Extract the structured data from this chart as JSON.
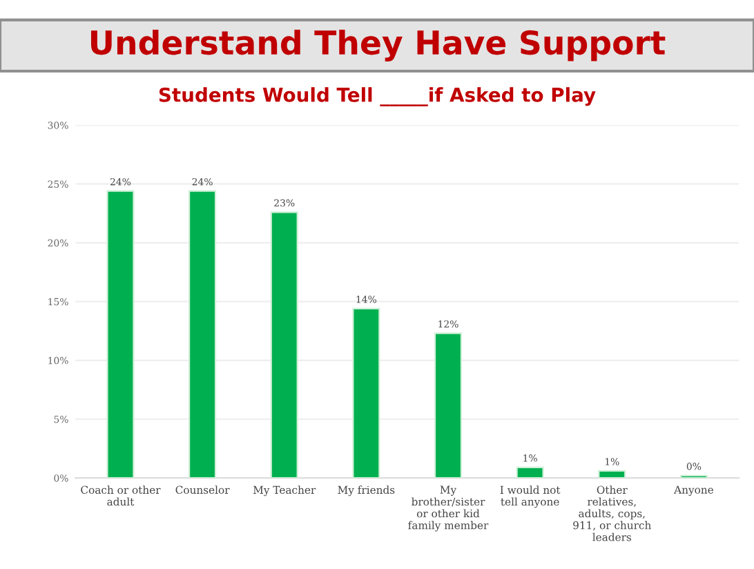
{
  "chart_data": {
    "type": "bar",
    "title": "Understand They Have Support",
    "subtitle": "Students Would Tell _____if Asked to Play",
    "categories": [
      "Coach or other adult",
      "Counselor",
      "My Teacher",
      "My friends",
      "My brother/sister or other kid family member",
      "I would not tell anyone",
      "Other relatives, adults, cops, 911, or church leaders",
      "Anyone"
    ],
    "values": [
      24.4,
      24.4,
      22.6,
      14.4,
      12.3,
      0.9,
      0.6,
      0.2
    ],
    "value_labels": [
      "24%",
      "24%",
      "23%",
      "14%",
      "12%",
      "1%",
      "1%",
      "0%"
    ],
    "color": "#00b050",
    "ylim": [
      0,
      30
    ],
    "yticks": [
      {
        "value": 0,
        "label": "0%"
      },
      {
        "value": 5,
        "label": "5%"
      },
      {
        "value": 10,
        "label": "10%"
      },
      {
        "value": 15,
        "label": "15%"
      },
      {
        "value": 20,
        "label": "20%"
      },
      {
        "value": 25,
        "label": "25%"
      },
      {
        "value": 30,
        "label": "30%"
      }
    ],
    "grid": "y"
  }
}
